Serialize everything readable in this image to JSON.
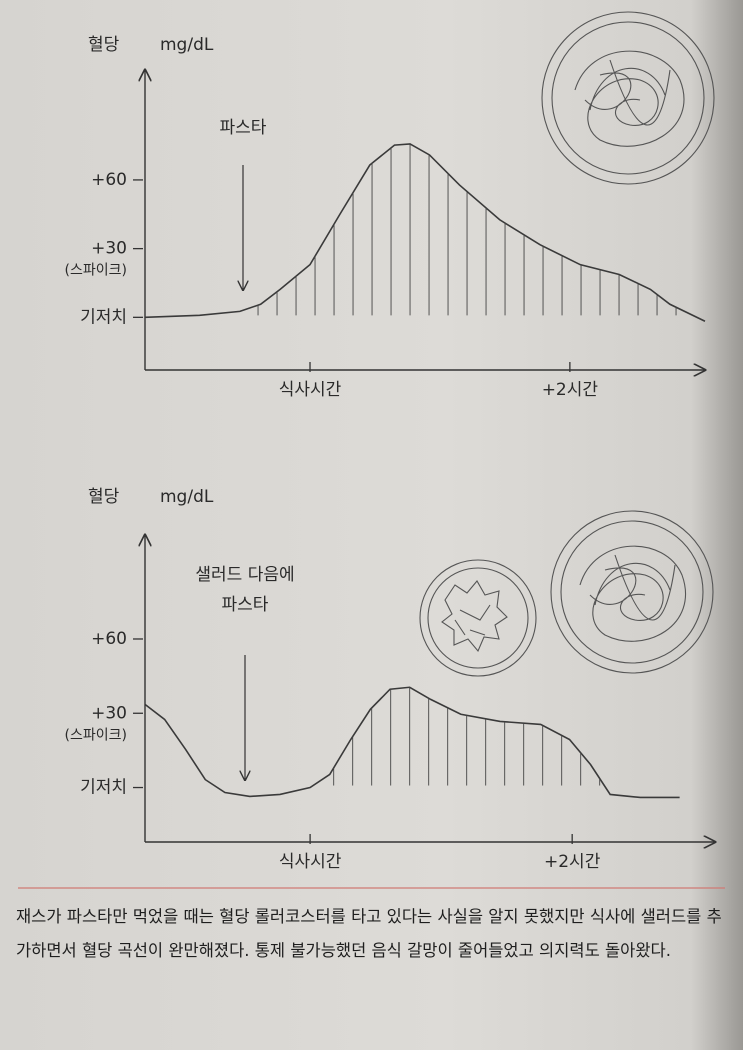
{
  "chart_data": [
    {
      "type": "line",
      "ylabel": "혈당",
      "yunit": "mg/dL",
      "annotation": [
        "파스타"
      ],
      "spike_label": "(스파이크)",
      "x": [
        -1.27,
        -0.85,
        -0.54,
        -0.38,
        -0.23,
        0,
        0.23,
        0.46,
        0.65,
        0.77,
        0.92,
        1.15,
        1.46,
        1.77,
        2.08,
        2.38,
        2.62,
        2.77,
        3.04
      ],
      "series": [
        {
          "color": "#3a3a3a",
          "values": [
            0,
            0.9,
            2.6,
            5.7,
            12.2,
            23,
            45,
            66.5,
            75.2,
            75.7,
            70.9,
            57.8,
            42.6,
            31.7,
            23,
            18.7,
            12.2,
            5.7,
            -1.7
          ]
        }
      ],
      "xlim": [
        -1.27,
        3.04
      ],
      "ylim": [
        -23,
        108
      ],
      "xticks": [
        {
          "value": 0,
          "label": "식사시간"
        },
        {
          "value": 2,
          "label": "+2시간"
        }
      ],
      "yticks": [
        {
          "value": 0,
          "label": "기저치"
        },
        {
          "value": 30,
          "label": "+30"
        },
        {
          "value": 60,
          "label": "+60"
        }
      ]
    },
    {
      "type": "line",
      "ylabel": "혈당",
      "yunit": "mg/dL",
      "annotation": [
        "샐러드 다음에",
        "파스타"
      ],
      "spike_label": "(스파이크)",
      "x": [
        -1.26,
        -1.11,
        -0.95,
        -0.8,
        -0.65,
        -0.46,
        -0.23,
        0,
        0.15,
        0.31,
        0.46,
        0.61,
        0.76,
        0.92,
        1.15,
        1.45,
        1.76,
        1.98,
        2.14,
        2.29,
        2.52,
        2.82
      ],
      "series": [
        {
          "color": "#3a3a3a",
          "values": [
            33.6,
            27.5,
            15.4,
            3.2,
            -2,
            -3.6,
            -2.8,
            0,
            5.3,
            19.4,
            31.6,
            39.7,
            40.5,
            35.6,
            29.6,
            26.7,
            25.5,
            19.4,
            9.3,
            -2.8,
            -4,
            -4
          ]
        }
      ],
      "xlim": [
        -1.26,
        3.09
      ],
      "ylim": [
        -22,
        102
      ],
      "xticks": [
        {
          "value": 0,
          "label": "식사시간"
        },
        {
          "value": 2,
          "label": "+2시간"
        }
      ],
      "yticks": [
        {
          "value": 0,
          "label": "기저치"
        },
        {
          "value": 30,
          "label": "+30"
        },
        {
          "value": 60,
          "label": "+60"
        }
      ]
    }
  ],
  "caption": "재스가 파스타만 먹었을 때는 혈당 롤러코스터를 타고 있다는 사실을 알지 못했지만 식사에 샐러드를 추가하면서 혈당 곡선이 완만해졌다. 통제 불가능했던 음식 갈망이 줄어들었고 의지력도 돌아왔다."
}
